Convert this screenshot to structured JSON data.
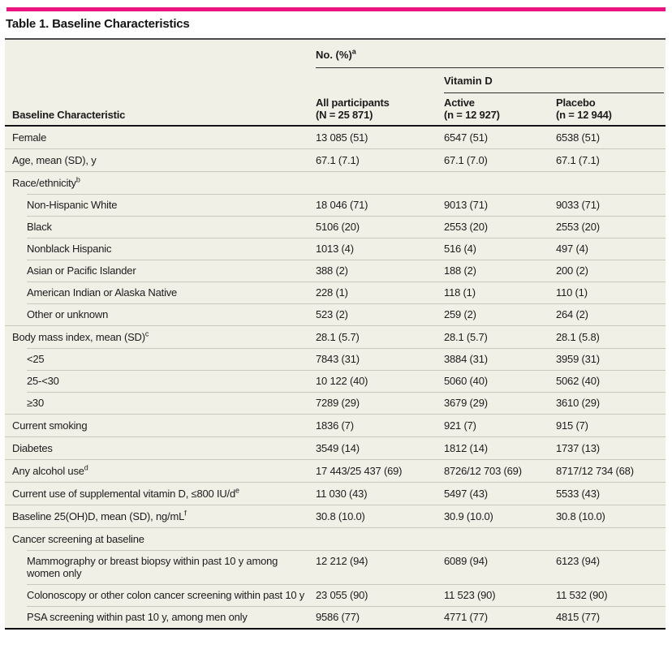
{
  "colors": {
    "accent": "#ec1380",
    "table_bg": "#f1f0e6"
  },
  "title": "Table 1. Baseline Characteristics",
  "header": {
    "span_label": "No. (%)",
    "span_sup": "a",
    "group_label": "Vitamin D",
    "characteristic_label": "Baseline Characteristic",
    "columns": [
      {
        "line1": "All participants",
        "line2": "(N = 25 871)"
      },
      {
        "line1": "Active",
        "line2": "(n = 12 927)"
      },
      {
        "line1": "Placebo",
        "line2": "(n = 12 944)"
      }
    ]
  },
  "rows": [
    {
      "label": "Female",
      "sup": "",
      "indent": 0,
      "values": [
        "13 085 (51)",
        "6547 (51)",
        "6538 (51)"
      ]
    },
    {
      "label": "Age, mean (SD), y",
      "sup": "",
      "indent": 0,
      "values": [
        "67.1 (7.1)",
        "67.1 (7.0)",
        "67.1 (7.1)"
      ]
    },
    {
      "label": "Race/ethnicity",
      "sup": "b",
      "indent": 0,
      "values": [
        "",
        "",
        ""
      ]
    },
    {
      "label": "Non-Hispanic White",
      "sup": "",
      "indent": 1,
      "values": [
        "18 046 (71)",
        "9013 (71)",
        "9033 (71)"
      ]
    },
    {
      "label": "Black",
      "sup": "",
      "indent": 1,
      "values": [
        "5106 (20)",
        "2553 (20)",
        "2553 (20)"
      ]
    },
    {
      "label": "Nonblack Hispanic",
      "sup": "",
      "indent": 1,
      "values": [
        "1013 (4)",
        "516 (4)",
        "497 (4)"
      ]
    },
    {
      "label": "Asian or Pacific Islander",
      "sup": "",
      "indent": 1,
      "values": [
        "388 (2)",
        "188 (2)",
        "200 (2)"
      ]
    },
    {
      "label": "American Indian or Alaska Native",
      "sup": "",
      "indent": 1,
      "values": [
        "228 (1)",
        "118 (1)",
        "110 (1)"
      ]
    },
    {
      "label": "Other or unknown",
      "sup": "",
      "indent": 1,
      "values": [
        "523 (2)",
        "259 (2)",
        "264 (2)"
      ]
    },
    {
      "label": "Body mass index, mean (SD)",
      "sup": "c",
      "indent": 0,
      "values": [
        "28.1 (5.7)",
        "28.1 (5.7)",
        "28.1 (5.8)"
      ]
    },
    {
      "label": "<25",
      "sup": "",
      "indent": 1,
      "values": [
        "7843 (31)",
        "3884 (31)",
        "3959 (31)"
      ]
    },
    {
      "label": "25-<30",
      "sup": "",
      "indent": 1,
      "values": [
        "10 122 (40)",
        "5060 (40)",
        "5062 (40)"
      ]
    },
    {
      "label": "≥30",
      "sup": "",
      "indent": 1,
      "values": [
        "7289 (29)",
        "3679 (29)",
        "3610 (29)"
      ]
    },
    {
      "label": "Current smoking",
      "sup": "",
      "indent": 0,
      "values": [
        "1836 (7)",
        "921 (7)",
        "915 (7)"
      ]
    },
    {
      "label": "Diabetes",
      "sup": "",
      "indent": 0,
      "values": [
        "3549 (14)",
        "1812 (14)",
        "1737 (13)"
      ]
    },
    {
      "label": "Any alcohol use",
      "sup": "d",
      "indent": 0,
      "values": [
        "17 443/25 437 (69)",
        "8726/12 703 (69)",
        "8717/12 734 (68)"
      ]
    },
    {
      "label": "Current use of supplemental vitamin D, ≤800 IU/d",
      "sup": "e",
      "indent": 0,
      "values": [
        "11 030 (43)",
        "5497 (43)",
        "5533 (43)"
      ]
    },
    {
      "label": "Baseline 25(OH)D, mean (SD), ng/mL",
      "sup": "f",
      "indent": 0,
      "values": [
        "30.8 (10.0)",
        "30.9 (10.0)",
        "30.8 (10.0)"
      ]
    },
    {
      "label": "Cancer screening at baseline",
      "sup": "",
      "indent": 0,
      "values": [
        "",
        "",
        ""
      ]
    },
    {
      "label": "Mammography or breast biopsy within past 10 y among women only",
      "sup": "",
      "indent": 1,
      "values": [
        "12 212 (94)",
        "6089 (94)",
        "6123 (94)"
      ]
    },
    {
      "label": "Colonoscopy or other colon cancer screening within past 10 y",
      "sup": "",
      "indent": 1,
      "values": [
        "23 055 (90)",
        "11 523 (90)",
        "11 532 (90)"
      ]
    },
    {
      "label": "PSA screening within past 10 y, among men only",
      "sup": "",
      "indent": 1,
      "values": [
        "9586 (77)",
        "4771 (77)",
        "4815 (77)"
      ]
    }
  ]
}
